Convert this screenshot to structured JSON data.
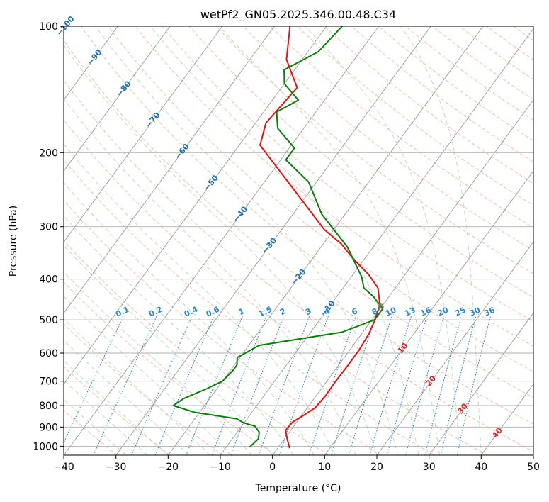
{
  "chart_data": {
    "type": "line",
    "subtype": "skew-T log-P diagram",
    "title": "wetPf2_GN05.2025.346.00.48.C34",
    "xlabel": "Temperature (°C)",
    "ylabel": "Pressure (hPa)",
    "xlim": [
      -40,
      50
    ],
    "ylim": [
      1050,
      100
    ],
    "yscale": "log",
    "x_ticks": [
      -40,
      -30,
      -20,
      -10,
      0,
      10,
      20,
      30,
      40,
      50
    ],
    "x_tick_labels": [
      "−40",
      "−30",
      "−20",
      "−10",
      "0",
      "10",
      "20",
      "30",
      "40",
      "50"
    ],
    "y_ticks": [
      1000,
      900,
      800,
      700,
      600,
      500,
      400,
      300,
      200,
      100
    ],
    "y_tick_labels": [
      "1000",
      "900",
      "800",
      "700",
      "600",
      "500",
      "400",
      "300",
      "200",
      "100"
    ],
    "grid": true,
    "colors": {
      "temperature": "#e8110f",
      "dewpoint": "#0a7d0a",
      "isotherm": "#9a9a9a",
      "dry_adiabat": "#f4a58a",
      "moist_adiabat": "#9fcf9f",
      "mixing_ratio": "#2a86d8",
      "isotherm_label": "#1f6fb4",
      "mixing_label": "#2a86d8",
      "pos_label": "#d62728",
      "neutral_label": "#808080"
    },
    "series": [
      {
        "key": "temperature",
        "points": [
          [
            2.3,
            1010
          ],
          [
            0.5,
            960
          ],
          [
            -1,
            915
          ],
          [
            -0.8,
            875
          ],
          [
            0.5,
            840
          ],
          [
            1.5,
            810
          ],
          [
            1.8,
            760
          ],
          [
            1.7,
            700
          ],
          [
            1.8,
            640
          ],
          [
            1.8,
            590
          ],
          [
            1.4,
            540
          ],
          [
            0.6,
            500
          ],
          [
            -0.6,
            460
          ],
          [
            -3.3,
            420
          ],
          [
            -7,
            390
          ],
          [
            -11.8,
            360
          ],
          [
            -16.5,
            330
          ],
          [
            -21.8,
            305
          ],
          [
            -46,
            192
          ],
          [
            -48,
            170
          ],
          [
            -47,
            140
          ],
          [
            -53,
            120
          ],
          [
            -57,
            100
          ]
        ]
      },
      {
        "key": "dewpoint",
        "points": [
          [
            -5.5,
            1005
          ],
          [
            -5,
            960
          ],
          [
            -5.8,
            925
          ],
          [
            -7.5,
            895
          ],
          [
            -10,
            880
          ],
          [
            -12,
            860
          ],
          [
            -21,
            830
          ],
          [
            -26,
            800
          ],
          [
            -25,
            770
          ],
          [
            -22,
            730
          ],
          [
            -20,
            700
          ],
          [
            -19.5,
            660
          ],
          [
            -19.5,
            640
          ],
          [
            -20.5,
            615
          ],
          [
            -18,
            575
          ],
          [
            -4,
            535
          ],
          [
            0.5,
            500
          ],
          [
            0.5,
            470
          ],
          [
            -3,
            440
          ],
          [
            -6,
            420
          ],
          [
            -8,
            395
          ],
          [
            -15,
            335
          ],
          [
            -24.5,
            280
          ],
          [
            -31.5,
            235
          ],
          [
            -39,
            208
          ],
          [
            -39,
            195
          ],
          [
            -45,
            175
          ],
          [
            -47.5,
            160
          ],
          [
            -45,
            150
          ],
          [
            -50,
            137
          ],
          [
            -52,
            127
          ],
          [
            -48,
            115
          ],
          [
            -47,
            100
          ]
        ]
      }
    ],
    "isotherm_labels": [
      -100,
      -90,
      -80,
      -70,
      -60,
      -50,
      -40,
      -30,
      -20,
      -10,
      0,
      10,
      20,
      30,
      40
    ],
    "mixing_ratio_labels": [
      "0.1",
      "0.2",
      "0.4",
      "0.6",
      "1",
      "1.5",
      "2",
      "3",
      "4",
      "6",
      "8",
      "10",
      "13",
      "16",
      "20",
      "25",
      "30",
      "36"
    ],
    "mixing_ratio_values": [
      0.1,
      0.2,
      0.4,
      0.6,
      1,
      1.5,
      2,
      3,
      4,
      6,
      8,
      10,
      13,
      16,
      20,
      25,
      30,
      36
    ],
    "mixing_label_pressure": 490
  }
}
